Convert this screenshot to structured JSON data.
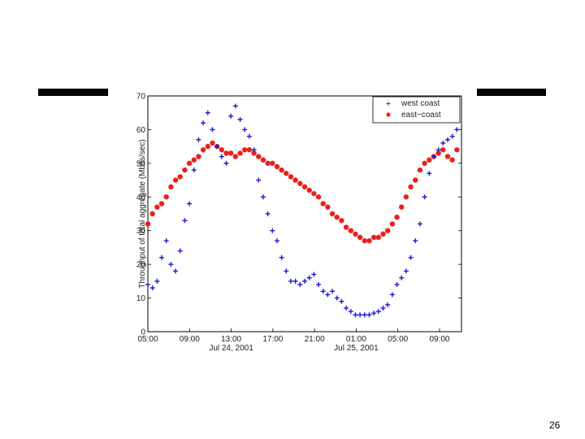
{
  "slide": {
    "page_number": "26"
  },
  "chart_data": {
    "type": "scatter",
    "xlabel": "",
    "ylabel": "Throughput of total aggregate (Mbits/sec)",
    "ylim": [
      0,
      70
    ],
    "yticks": [
      0,
      10,
      20,
      30,
      40,
      50,
      60,
      70
    ],
    "xlim": [
      0,
      34
    ],
    "xtick_labels": [
      "05:00",
      "09:00",
      "13:00",
      "17:00",
      "21:00",
      "01:00",
      "05:00",
      "09:00"
    ],
    "date_labels": [
      {
        "text": "Jul 24, 2001",
        "at_tick": 2
      },
      {
        "text": "Jul 25, 2001",
        "at_tick": 5
      }
    ],
    "grid": false,
    "legend": {
      "position": "top-right"
    },
    "series": [
      {
        "name": "west  coast",
        "marker": "+",
        "color": "#1a1ad2",
        "points": [
          [
            0,
            14
          ],
          [
            0.5,
            13
          ],
          [
            1,
            15
          ],
          [
            1.5,
            22
          ],
          [
            2,
            27
          ],
          [
            2.5,
            20
          ],
          [
            3,
            18
          ],
          [
            3.5,
            24
          ],
          [
            4,
            33
          ],
          [
            4.5,
            38
          ],
          [
            5,
            48
          ],
          [
            5.5,
            57
          ],
          [
            6,
            62
          ],
          [
            6.5,
            65
          ],
          [
            7,
            60
          ],
          [
            7.5,
            55
          ],
          [
            8,
            52
          ],
          [
            8.5,
            50
          ],
          [
            9,
            64
          ],
          [
            9.5,
            67
          ],
          [
            10,
            63
          ],
          [
            10.5,
            60
          ],
          [
            11,
            58
          ],
          [
            11.5,
            54
          ],
          [
            12,
            45
          ],
          [
            12.5,
            40
          ],
          [
            13,
            35
          ],
          [
            13.5,
            30
          ],
          [
            14,
            27
          ],
          [
            14.5,
            22
          ],
          [
            15,
            18
          ],
          [
            15.5,
            15
          ],
          [
            16,
            15
          ],
          [
            16.5,
            14
          ],
          [
            17,
            15
          ],
          [
            17.5,
            16
          ],
          [
            18,
            17
          ],
          [
            18.5,
            14
          ],
          [
            19,
            12
          ],
          [
            19.5,
            11
          ],
          [
            20,
            12
          ],
          [
            20.5,
            10
          ],
          [
            21,
            9
          ],
          [
            21.5,
            7
          ],
          [
            22,
            6
          ],
          [
            22.5,
            5
          ],
          [
            23,
            5
          ],
          [
            23.5,
            5
          ],
          [
            24,
            5
          ],
          [
            24.5,
            5.5
          ],
          [
            25,
            6
          ],
          [
            25.5,
            7
          ],
          [
            26,
            8
          ],
          [
            26.5,
            11
          ],
          [
            27,
            14
          ],
          [
            27.5,
            16
          ],
          [
            28,
            18
          ],
          [
            28.5,
            22
          ],
          [
            29,
            27
          ],
          [
            29.5,
            32
          ],
          [
            30,
            40
          ],
          [
            30.5,
            47
          ],
          [
            31,
            52
          ],
          [
            31.5,
            54
          ],
          [
            32,
            56
          ],
          [
            32.5,
            57
          ],
          [
            33,
            58
          ],
          [
            33.5,
            60
          ]
        ]
      },
      {
        "name": "east−coast",
        "marker": "o",
        "color": "#e8221b",
        "points": [
          [
            0,
            32
          ],
          [
            0.5,
            35
          ],
          [
            1,
            37
          ],
          [
            1.5,
            38
          ],
          [
            2,
            40
          ],
          [
            2.5,
            43
          ],
          [
            3,
            45
          ],
          [
            3.5,
            46
          ],
          [
            4,
            48
          ],
          [
            4.5,
            50
          ],
          [
            5,
            51
          ],
          [
            5.5,
            52
          ],
          [
            6,
            54
          ],
          [
            6.5,
            55
          ],
          [
            7,
            56
          ],
          [
            7.5,
            55
          ],
          [
            8,
            54
          ],
          [
            8.5,
            53
          ],
          [
            9,
            53
          ],
          [
            9.5,
            52
          ],
          [
            10,
            53
          ],
          [
            10.5,
            54
          ],
          [
            11,
            54
          ],
          [
            11.5,
            53
          ],
          [
            12,
            52
          ],
          [
            12.5,
            51
          ],
          [
            13,
            50
          ],
          [
            13.5,
            50
          ],
          [
            14,
            49
          ],
          [
            14.5,
            48
          ],
          [
            15,
            47
          ],
          [
            15.5,
            46
          ],
          [
            16,
            45
          ],
          [
            16.5,
            44
          ],
          [
            17,
            43
          ],
          [
            17.5,
            42
          ],
          [
            18,
            41
          ],
          [
            18.5,
            40
          ],
          [
            19,
            38
          ],
          [
            19.5,
            37
          ],
          [
            20,
            35
          ],
          [
            20.5,
            34
          ],
          [
            21,
            33
          ],
          [
            21.5,
            31
          ],
          [
            22,
            30
          ],
          [
            22.5,
            29
          ],
          [
            23,
            28
          ],
          [
            23.5,
            27
          ],
          [
            24,
            27
          ],
          [
            24.5,
            28
          ],
          [
            25,
            28
          ],
          [
            25.5,
            29
          ],
          [
            26,
            30
          ],
          [
            26.5,
            32
          ],
          [
            27,
            34
          ],
          [
            27.5,
            37
          ],
          [
            28,
            40
          ],
          [
            28.5,
            43
          ],
          [
            29,
            45
          ],
          [
            29.5,
            48
          ],
          [
            30,
            50
          ],
          [
            30.5,
            51
          ],
          [
            31,
            52
          ],
          [
            31.5,
            53
          ],
          [
            32,
            54
          ],
          [
            32.5,
            52
          ],
          [
            33,
            51
          ],
          [
            33.5,
            54
          ]
        ]
      }
    ]
  }
}
